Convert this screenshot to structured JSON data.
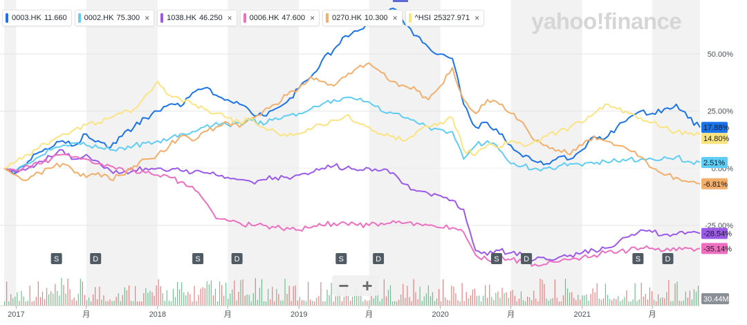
{
  "brand": "yahoo!finance",
  "legend": [
    {
      "symbol": "0003.HK",
      "price": "11.660",
      "color": "#1a73e8",
      "closable": false
    },
    {
      "symbol": "0002.HK",
      "price": "75.300",
      "color": "#5fcdf4",
      "closable": true
    },
    {
      "symbol": "1038.HK",
      "price": "46.250",
      "color": "#9b59ea",
      "closable": true
    },
    {
      "symbol": "0006.HK",
      "price": "47.600",
      "color": "#ec6fc0",
      "closable": true
    },
    {
      "symbol": "0270.HK",
      "price": "10.300",
      "color": "#f2ae6a",
      "closable": true
    },
    {
      "symbol": "^HSI",
      "price": "25327.971",
      "color": "#fae481",
      "closable": true
    }
  ],
  "close_glyph": "×",
  "zoom": {
    "minus": "−",
    "plus": "+"
  },
  "chart_data": {
    "type": "line",
    "x": [
      "2016-12-01",
      "2017-01-01",
      "2017-02-01",
      "2017-03-01",
      "2017-04-01",
      "2017-05-01",
      "2017-06-01",
      "2017-07-01",
      "2017-08-01",
      "2017-09-01",
      "2017-10-01",
      "2017-11-01",
      "2017-12-01",
      "2018-01-01",
      "2018-02-01",
      "2018-03-01",
      "2018-04-01",
      "2018-05-01",
      "2018-06-01",
      "2018-07-01",
      "2018-08-01",
      "2018-09-01",
      "2018-10-01",
      "2018-11-01",
      "2018-12-01",
      "2019-01-01",
      "2019-02-01",
      "2019-03-01",
      "2019-04-01",
      "2019-05-01",
      "2019-06-01",
      "2019-07-01",
      "2019-08-01",
      "2019-09-01",
      "2019-10-01",
      "2019-11-01",
      "2019-12-01",
      "2020-01-01",
      "2020-02-01",
      "2020-03-01",
      "2020-04-01",
      "2020-05-01",
      "2020-06-01",
      "2020-07-01",
      "2020-08-01",
      "2020-09-01",
      "2020-10-01",
      "2020-11-01",
      "2020-12-01",
      "2021-01-01",
      "2021-02-01",
      "2021-03-01",
      "2021-04-01",
      "2021-05-01",
      "2021-06-01",
      "2021-07-01",
      "2021-08-01",
      "2021-09-01",
      "2021-10-01",
      "2021-11-01"
    ],
    "series": [
      {
        "name": "0003.HK",
        "color": "#1a73e8",
        "end_label": "17.88%",
        "values": [
          0,
          -2,
          3,
          7,
          9,
          12,
          10,
          15,
          12,
          9,
          14,
          18,
          22,
          25,
          28,
          27,
          33,
          35,
          32,
          30,
          28,
          24,
          23,
          26,
          29,
          35,
          40,
          47,
          52,
          58,
          60,
          63,
          66,
          70,
          63,
          58,
          53,
          50,
          48,
          28,
          18,
          20,
          15,
          10,
          5,
          3,
          2,
          5,
          4,
          8,
          14,
          13,
          18,
          22,
          25,
          24,
          26,
          28,
          22,
          17.88
        ]
      },
      {
        "name": "0002.HK",
        "color": "#5fcdf4",
        "end_label": "2.51%",
        "values": [
          0,
          -1,
          2,
          5,
          8,
          10,
          11,
          10,
          9,
          8,
          9,
          10,
          11,
          12,
          13,
          15,
          16,
          18,
          20,
          19,
          20,
          21,
          19,
          22,
          23,
          24,
          26,
          28,
          30,
          31,
          30,
          29,
          25,
          24,
          22,
          20,
          18,
          17,
          16,
          4,
          10,
          12,
          8,
          2,
          1,
          0,
          0,
          1,
          2,
          1,
          2,
          3,
          3,
          4,
          4,
          4,
          5,
          5,
          3,
          2.51
        ]
      },
      {
        "name": "1038.HK",
        "color": "#9b59ea",
        "end_label": "-28.54%",
        "values": [
          0,
          -2,
          0,
          3,
          5,
          8,
          4,
          6,
          3,
          -1,
          -2,
          -1,
          0,
          0,
          -1,
          -1,
          -2,
          -2,
          -3,
          -4,
          -5,
          -6,
          -5,
          -4,
          -4,
          -3,
          -2,
          0,
          1,
          0,
          -1,
          0,
          -1,
          -2,
          -7,
          -10,
          -11,
          -12,
          -14,
          -18,
          -36,
          -38,
          -36,
          -37,
          -38,
          -40,
          -40,
          -39,
          -38,
          -37,
          -36,
          -35,
          -33,
          -30,
          -27,
          -28,
          -29,
          -29,
          -28,
          -28.54
        ]
      },
      {
        "name": "0006.HK",
        "color": "#ec6fc0",
        "end_label": "-35.14%",
        "values": [
          0,
          -1,
          1,
          2,
          4,
          6,
          5,
          4,
          2,
          1,
          0,
          -1,
          -2,
          -3,
          -4,
          -6,
          -8,
          -14,
          -22,
          -23,
          -24,
          -25,
          -25,
          -26,
          -26,
          -27,
          -26,
          -25,
          -24,
          -24,
          -25,
          -25,
          -24,
          -23,
          -24,
          -24,
          -25,
          -26,
          -26,
          -28,
          -38,
          -40,
          -39,
          -40,
          -41,
          -42,
          -42,
          -41,
          -40,
          -39,
          -38,
          -37,
          -37,
          -36,
          -35,
          -35,
          -36,
          -36,
          -35,
          -35.14
        ]
      },
      {
        "name": "0270.HK",
        "color": "#f2ae6a",
        "end_label": "-6.81%",
        "values": [
          0,
          -3,
          -5,
          -2,
          0,
          2,
          -2,
          -4,
          -2,
          -5,
          -3,
          1,
          4,
          6,
          10,
          14,
          12,
          16,
          18,
          20,
          18,
          22,
          25,
          28,
          32,
          35,
          40,
          38,
          36,
          40,
          44,
          46,
          42,
          38,
          36,
          34,
          30,
          36,
          44,
          30,
          24,
          30,
          28,
          24,
          20,
          12,
          10,
          8,
          6,
          10,
          14,
          12,
          10,
          8,
          5,
          0,
          -3,
          -4,
          -6,
          -6.81
        ]
      },
      {
        "name": "^HSI",
        "color": "#fae481",
        "end_label": "14.80%",
        "values": [
          0,
          3,
          6,
          9,
          12,
          15,
          17,
          19,
          20,
          22,
          24,
          26,
          32,
          38,
          32,
          30,
          28,
          26,
          24,
          22,
          20,
          22,
          18,
          16,
          14,
          15,
          17,
          19,
          21,
          23,
          20,
          18,
          15,
          14,
          12,
          16,
          18,
          20,
          22,
          8,
          6,
          10,
          9,
          12,
          10,
          12,
          14,
          16,
          18,
          20,
          24,
          28,
          26,
          24,
          22,
          20,
          18,
          16,
          15,
          14.8
        ]
      }
    ],
    "yticks": [
      {
        "value": 50,
        "label": "50.00%"
      },
      {
        "value": 25,
        "label": "25.00%"
      },
      {
        "value": 0,
        "label": "0.00%"
      },
      {
        "value": -25,
        "label": "-25.00%"
      }
    ],
    "ylim": [
      -45,
      70
    ],
    "xticks": [
      {
        "date": "2017-01-01",
        "label": "2017"
      },
      {
        "date": "2017-07-01",
        "label": "月"
      },
      {
        "date": "2018-01-01",
        "label": "2018"
      },
      {
        "date": "2018-07-01",
        "label": "月"
      },
      {
        "date": "2019-01-01",
        "label": "2019"
      },
      {
        "date": "2019-07-01",
        "label": "月"
      },
      {
        "date": "2020-01-01",
        "label": "2020"
      },
      {
        "date": "2020-07-01",
        "label": "月"
      },
      {
        "date": "2021-01-01",
        "label": "2021"
      },
      {
        "date": "2021-07-01",
        "label": "月"
      }
    ],
    "events": [
      {
        "date": "2017-04-15",
        "label": "S"
      },
      {
        "date": "2017-07-25",
        "label": "D"
      },
      {
        "date": "2018-04-15",
        "label": "S"
      },
      {
        "date": "2018-07-25",
        "label": "D"
      },
      {
        "date": "2019-04-20",
        "label": "S"
      },
      {
        "date": "2019-07-25",
        "label": "D"
      },
      {
        "date": "2020-05-25",
        "label": "S"
      },
      {
        "date": "2020-08-10",
        "label": "D"
      },
      {
        "date": "2021-05-25",
        "label": "S"
      },
      {
        "date": "2021-08-10",
        "label": "D"
      }
    ],
    "volume_label": "30.44M",
    "grid": true
  }
}
